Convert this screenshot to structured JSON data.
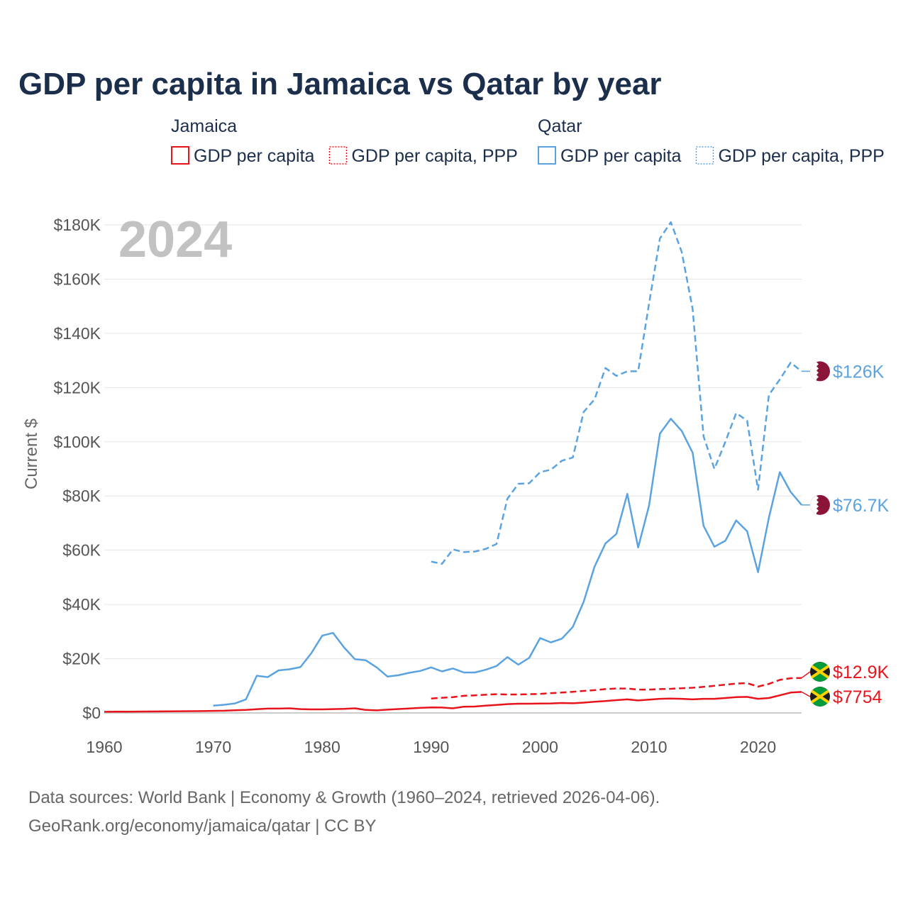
{
  "title": "GDP per capita in Jamaica vs Qatar by year",
  "year_label": "2024",
  "legend": {
    "groups": [
      {
        "name": "Jamaica",
        "color": "#e8141c",
        "items": [
          {
            "label": "GDP per capita",
            "style": "solid"
          },
          {
            "label": "GDP per capita, PPP",
            "style": "dotted"
          }
        ]
      },
      {
        "name": "Qatar",
        "color": "#5ba3e0",
        "items": [
          {
            "label": "GDP per capita",
            "style": "solid"
          },
          {
            "label": "GDP per capita, PPP",
            "style": "dotted"
          }
        ]
      }
    ]
  },
  "source": {
    "line1": "Data sources: World Bank | Economy & Growth (1960–2024, retrieved 2026-04-06).",
    "line2": "GeoRank.org/economy/jamaica/qatar | CC BY"
  },
  "chart_data": {
    "type": "line",
    "title": "GDP per capita in Jamaica vs Qatar by year",
    "ylabel": "Current $",
    "xlabel": "",
    "xlim": [
      1960,
      2024
    ],
    "ylim": [
      0,
      180000
    ],
    "x_ticks": [
      1960,
      1970,
      1980,
      1990,
      2000,
      2010,
      2020
    ],
    "y_ticks": [
      0,
      20000,
      40000,
      60000,
      80000,
      100000,
      120000,
      140000,
      160000,
      180000
    ],
    "y_tick_labels": [
      "$0",
      "$20K",
      "$40K",
      "$60K",
      "$80K",
      "$100K",
      "$120K",
      "$140K",
      "$160K",
      "$180K"
    ],
    "grid": true,
    "series": [
      {
        "name": "Jamaica GDP per capita",
        "color": "#e8141c",
        "dash": "solid",
        "end_label": "$7754",
        "x": [
          1960,
          1961,
          1962,
          1963,
          1964,
          1965,
          1966,
          1967,
          1968,
          1969,
          1970,
          1971,
          1972,
          1973,
          1974,
          1975,
          1976,
          1977,
          1978,
          1979,
          1980,
          1981,
          1982,
          1983,
          1984,
          1985,
          1986,
          1987,
          1988,
          1989,
          1990,
          1991,
          1992,
          1993,
          1994,
          1995,
          1996,
          1997,
          1998,
          1999,
          2000,
          2001,
          2002,
          2003,
          2004,
          2005,
          2006,
          2007,
          2008,
          2009,
          2010,
          2011,
          2012,
          2013,
          2014,
          2015,
          2016,
          2017,
          2018,
          2019,
          2020,
          2021,
          2022,
          2023,
          2024
        ],
        "y": [
          430,
          450,
          470,
          490,
          520,
          560,
          600,
          620,
          650,
          690,
          760,
          820,
          1000,
          1100,
          1350,
          1600,
          1600,
          1700,
          1400,
          1300,
          1300,
          1400,
          1500,
          1700,
          1100,
          950,
          1200,
          1450,
          1650,
          1850,
          2050,
          2000,
          1700,
          2300,
          2350,
          2700,
          2950,
          3250,
          3400,
          3400,
          3450,
          3500,
          3650,
          3550,
          3800,
          4100,
          4400,
          4700,
          5000,
          4600,
          4900,
          5200,
          5300,
          5200,
          5000,
          5200,
          5200,
          5500,
          5800,
          5900,
          5200,
          5500,
          6500,
          7500,
          7754
        ]
      },
      {
        "name": "Jamaica GDP per capita, PPP",
        "color": "#e8141c",
        "dash": "dashed",
        "end_label": "$12.9K",
        "x": [
          1990,
          1991,
          1992,
          1993,
          1994,
          1995,
          1996,
          1997,
          1998,
          1999,
          2000,
          2001,
          2002,
          2003,
          2004,
          2005,
          2006,
          2007,
          2008,
          2009,
          2010,
          2011,
          2012,
          2013,
          2014,
          2015,
          2016,
          2017,
          2018,
          2019,
          2020,
          2021,
          2022,
          2023,
          2024
        ],
        "y": [
          5300,
          5600,
          5800,
          6300,
          6500,
          6700,
          6900,
          6800,
          6800,
          6900,
          7000,
          7300,
          7500,
          7800,
          8100,
          8400,
          8800,
          9000,
          9000,
          8600,
          8600,
          8800,
          8900,
          9100,
          9300,
          9600,
          10000,
          10400,
          10800,
          11000,
          9700,
          10700,
          12200,
          12800,
          12900
        ]
      },
      {
        "name": "Qatar GDP per capita",
        "color": "#5ba3e0",
        "dash": "solid",
        "end_label": "$76.7K",
        "x": [
          1970,
          1971,
          1972,
          1973,
          1974,
          1975,
          1976,
          1977,
          1978,
          1979,
          1980,
          1981,
          1982,
          1983,
          1984,
          1985,
          1986,
          1987,
          1988,
          1989,
          1990,
          1991,
          1992,
          1993,
          1994,
          1995,
          1996,
          1997,
          1998,
          1999,
          2000,
          2001,
          2002,
          2003,
          2004,
          2005,
          2006,
          2007,
          2008,
          2009,
          2010,
          2011,
          2012,
          2013,
          2014,
          2015,
          2016,
          2017,
          2018,
          2019,
          2020,
          2021,
          2022,
          2023,
          2024
        ],
        "y": [
          2700,
          3000,
          3500,
          5000,
          13700,
          13200,
          15700,
          16100,
          16900,
          22000,
          28500,
          29500,
          24200,
          19800,
          19400,
          16800,
          13400,
          13900,
          14800,
          15500,
          16800,
          15300,
          16400,
          14900,
          14900,
          15900,
          17300,
          20600,
          17800,
          20300,
          27600,
          26000,
          27400,
          31700,
          41000,
          54000,
          62500,
          66000,
          80800,
          61000,
          76500,
          103000,
          108500,
          104000,
          96000,
          69000,
          61300,
          63500,
          71000,
          67000,
          51900,
          72000,
          88800,
          81500,
          76700
        ]
      },
      {
        "name": "Qatar GDP per capita, PPP",
        "color": "#5ba3e0",
        "dash": "dashed",
        "end_label": "$126K",
        "x": [
          1990,
          1991,
          1992,
          1993,
          1994,
          1995,
          1996,
          1997,
          1998,
          1999,
          2000,
          2001,
          2002,
          2003,
          2004,
          2005,
          2006,
          2007,
          2008,
          2009,
          2010,
          2011,
          2012,
          2013,
          2014,
          2015,
          2016,
          2017,
          2018,
          2019,
          2020,
          2021,
          2022,
          2023,
          2024
        ],
        "y": [
          55800,
          55000,
          60300,
          59300,
          59500,
          60500,
          62300,
          79000,
          84500,
          84700,
          88800,
          89700,
          93000,
          94200,
          111000,
          115700,
          127200,
          124300,
          126000,
          126000,
          151000,
          175000,
          181000,
          170000,
          149000,
          102000,
          90000,
          100000,
          110600,
          107800,
          82300,
          117300,
          123000,
          129200,
          126000
        ]
      }
    ]
  }
}
